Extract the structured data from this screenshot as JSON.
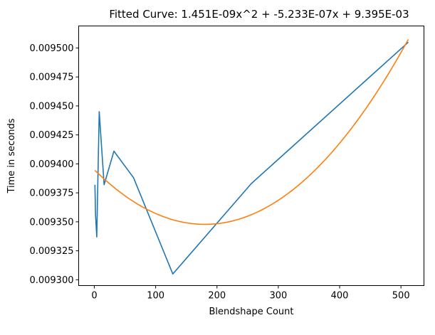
{
  "chart_data": {
    "type": "line",
    "title": "Fitted Curve: 1.451E-09x^2 + -5.233E-07x + 9.395E-03",
    "xlabel": "Blendshape Count",
    "ylabel": "Time in seconds",
    "xlim": [
      -25.5,
      537.5
    ],
    "ylim": [
      0.009295,
      0.009519
    ],
    "x_ticks": [
      0,
      100,
      200,
      300,
      400,
      500
    ],
    "x_tick_labels": [
      "0",
      "100",
      "200",
      "300",
      "400",
      "500"
    ],
    "y_ticks": [
      0.0093,
      0.009325,
      0.00935,
      0.009375,
      0.0094,
      0.009425,
      0.00945,
      0.009475,
      0.0095
    ],
    "y_tick_labels": [
      "0.009300",
      "0.009325",
      "0.009350",
      "0.009375",
      "0.009400",
      "0.009425",
      "0.009450",
      "0.009475",
      "0.009500"
    ],
    "grid": false,
    "legend": false,
    "series": [
      {
        "color": "#1f77b4",
        "x": [
          1,
          2,
          4,
          8,
          16,
          32,
          64,
          128,
          256,
          512
        ],
        "y": [
          0.009382,
          0.009356,
          0.009337,
          0.009445,
          0.009382,
          0.009411,
          0.009388,
          0.009305,
          0.009383,
          0.009505
        ]
      },
      {
        "color": "#ff7f0e",
        "fit": {
          "a": 1.451e-09,
          "b": -5.233e-07,
          "c": 0.009395,
          "x_start": 1,
          "x_end": 512
        }
      }
    ]
  }
}
